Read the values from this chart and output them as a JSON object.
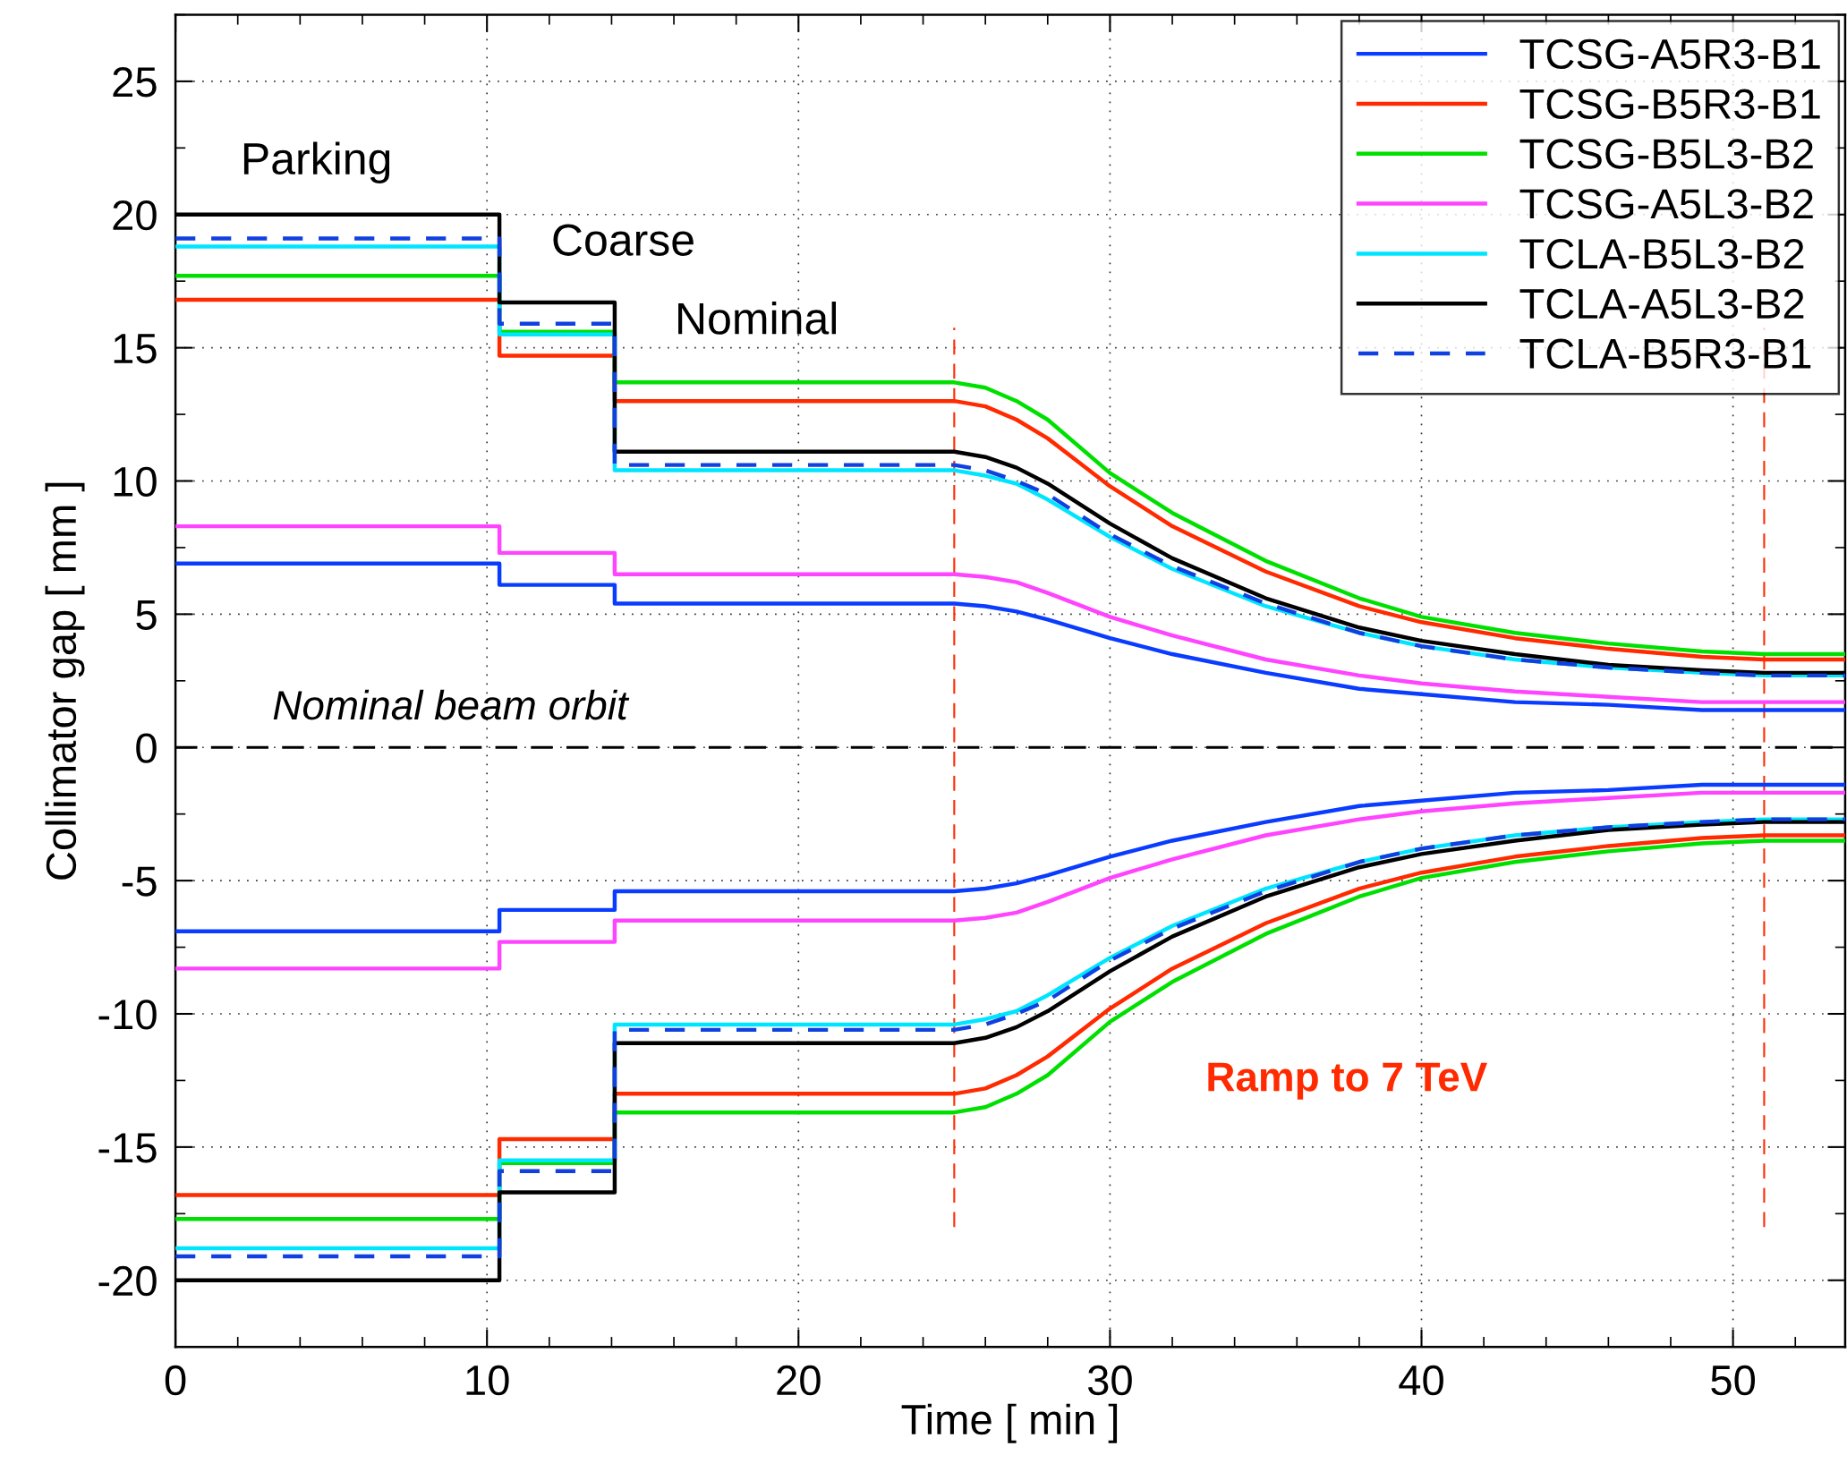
{
  "chart_data": {
    "type": "line",
    "xlabel": "Time [ min ]",
    "ylabel": "Collimator gap [ mm ]",
    "xlim": [
      0,
      53.6
    ],
    "ylim": [
      -22.5,
      27.5
    ],
    "xticks": [
      0,
      10,
      20,
      30,
      40,
      50
    ],
    "yticks": [
      -20,
      -15,
      -10,
      -5,
      0,
      5,
      10,
      15,
      20,
      25
    ],
    "grid": true,
    "legend": "top right",
    "line_style": "solid",
    "marker": "none",
    "ref_lines": [
      {
        "axis": "x",
        "value": 25,
        "label": null,
        "color": "#ff2a00",
        "line_style": "dashed"
      },
      {
        "axis": "x",
        "value": 51,
        "label": null,
        "color": "#ff2a00",
        "line_style": "dashed"
      },
      {
        "axis": "y",
        "value": 0,
        "label": null,
        "color": "#000000",
        "line_style": "dashed"
      }
    ],
    "annotations": [
      "Parking",
      "Coarse",
      "Nominal",
      "Nominal beam orbit",
      "Ramp to 7 TeV"
    ],
    "series": [
      {
        "name": "TCSG-A5R3-B1",
        "color": "#0a3cff",
        "x": [
          0,
          10.4,
          10.4,
          14.1,
          14.1,
          25,
          26,
          27,
          28,
          30,
          32,
          35,
          38,
          40,
          43,
          46,
          49,
          51,
          53.6,
          0,
          10.4,
          10.4,
          14.1,
          14.1,
          25,
          26,
          27,
          28,
          30,
          32,
          35,
          38,
          40,
          43,
          46,
          49,
          51,
          53.6
        ],
        "values": [
          6.9,
          6.9,
          6.1,
          6.1,
          5.4,
          5.4,
          5.3,
          5.1,
          4.8,
          4.1,
          3.5,
          2.8,
          2.2,
          2.0,
          1.7,
          1.6,
          1.4,
          1.4,
          1.4,
          -6.9,
          -6.9,
          -6.1,
          -6.1,
          -5.4,
          -5.4,
          -5.3,
          -5.1,
          -4.8,
          -4.1,
          -3.5,
          -2.8,
          -2.2,
          -2.0,
          -1.7,
          -1.6,
          -1.4,
          -1.4,
          -1.4
        ]
      },
      {
        "name": "TCSG-B5R3-B1",
        "color": "#ff2a00",
        "x": [
          0,
          10.4,
          10.4,
          14.1,
          14.1,
          25,
          26,
          27,
          28,
          30,
          32,
          35,
          38,
          40,
          43,
          46,
          49,
          51,
          53.6,
          0,
          10.4,
          10.4,
          14.1,
          14.1,
          25,
          26,
          27,
          28,
          30,
          32,
          35,
          38,
          40,
          43,
          46,
          49,
          51,
          53.6
        ],
        "values": [
          16.8,
          16.8,
          14.7,
          14.7,
          13.0,
          13.0,
          12.8,
          12.3,
          11.6,
          9.8,
          8.3,
          6.6,
          5.3,
          4.7,
          4.1,
          3.7,
          3.4,
          3.3,
          3.3,
          -16.8,
          -16.8,
          -14.7,
          -14.7,
          -13.0,
          -13.0,
          -12.8,
          -12.3,
          -11.6,
          -9.8,
          -8.3,
          -6.6,
          -5.3,
          -4.7,
          -4.1,
          -3.7,
          -3.4,
          -3.3,
          -3.3
        ]
      },
      {
        "name": "TCSG-B5L3-B2",
        "color": "#00e000",
        "x": [
          0,
          10.4,
          10.4,
          14.1,
          14.1,
          25,
          26,
          27,
          28,
          30,
          32,
          35,
          38,
          40,
          43,
          46,
          49,
          51,
          53.6,
          0,
          10.4,
          10.4,
          14.1,
          14.1,
          25,
          26,
          27,
          28,
          30,
          32,
          35,
          38,
          40,
          43,
          46,
          49,
          51,
          53.6
        ],
        "values": [
          17.7,
          17.7,
          15.6,
          15.6,
          13.7,
          13.7,
          13.5,
          13.0,
          12.3,
          10.3,
          8.8,
          7.0,
          5.6,
          4.9,
          4.3,
          3.9,
          3.6,
          3.5,
          3.5,
          -17.7,
          -17.7,
          -15.6,
          -15.6,
          -13.7,
          -13.7,
          -13.5,
          -13.0,
          -12.3,
          -10.3,
          -8.8,
          -7.0,
          -5.6,
          -4.9,
          -4.3,
          -3.9,
          -3.6,
          -3.5,
          -3.5
        ]
      },
      {
        "name": "TCSG-A5L3-B2",
        "color": "#ff44ff",
        "x": [
          0,
          10.4,
          10.4,
          14.1,
          14.1,
          25,
          26,
          27,
          28,
          30,
          32,
          35,
          38,
          40,
          43,
          46,
          49,
          51,
          53.6,
          0,
          10.4,
          10.4,
          14.1,
          14.1,
          25,
          26,
          27,
          28,
          30,
          32,
          35,
          38,
          40,
          43,
          46,
          49,
          51,
          53.6
        ],
        "values": [
          8.3,
          8.3,
          7.3,
          7.3,
          6.5,
          6.5,
          6.4,
          6.2,
          5.8,
          4.9,
          4.2,
          3.3,
          2.7,
          2.4,
          2.1,
          1.9,
          1.7,
          1.7,
          1.7,
          -8.3,
          -8.3,
          -7.3,
          -7.3,
          -6.5,
          -6.5,
          -6.4,
          -6.2,
          -5.8,
          -4.9,
          -4.2,
          -3.3,
          -2.7,
          -2.4,
          -2.1,
          -1.9,
          -1.7,
          -1.7,
          -1.7
        ]
      },
      {
        "name": "TCLA-B5L3-B2",
        "color": "#00e5ff",
        "x": [
          0,
          10.4,
          10.4,
          14.1,
          14.1,
          25,
          26,
          27,
          28,
          30,
          32,
          35,
          38,
          40,
          43,
          46,
          49,
          51,
          53.6,
          0,
          10.4,
          10.4,
          14.1,
          14.1,
          25,
          26,
          27,
          28,
          30,
          32,
          35,
          38,
          40,
          43,
          46,
          49,
          51,
          53.6
        ],
        "values": [
          18.8,
          18.8,
          15.5,
          15.5,
          10.4,
          10.4,
          10.2,
          9.9,
          9.3,
          7.9,
          6.7,
          5.3,
          4.3,
          3.8,
          3.3,
          3.0,
          2.8,
          2.7,
          2.7,
          -18.8,
          -18.8,
          -15.5,
          -15.5,
          -10.4,
          -10.4,
          -10.2,
          -9.9,
          -9.3,
          -7.9,
          -6.7,
          -5.3,
          -4.3,
          -3.8,
          -3.3,
          -3.0,
          -2.8,
          -2.7,
          -2.7
        ]
      },
      {
        "name": "TCLA-A5L3-B2",
        "color": "#000000",
        "x": [
          0,
          10.4,
          10.4,
          14.1,
          14.1,
          25,
          26,
          27,
          28,
          30,
          32,
          35,
          38,
          40,
          43,
          46,
          49,
          51,
          53.6,
          0,
          10.4,
          10.4,
          14.1,
          14.1,
          25,
          26,
          27,
          28,
          30,
          32,
          35,
          38,
          40,
          43,
          46,
          49,
          51,
          53.6
        ],
        "values": [
          20.0,
          20.0,
          16.7,
          16.7,
          11.1,
          11.1,
          10.9,
          10.5,
          9.9,
          8.4,
          7.1,
          5.6,
          4.5,
          4.0,
          3.5,
          3.1,
          2.9,
          2.8,
          2.8,
          -20.0,
          -20.0,
          -16.7,
          -16.7,
          -11.1,
          -11.1,
          -10.9,
          -10.5,
          -9.9,
          -8.4,
          -7.1,
          -5.6,
          -4.5,
          -4.0,
          -3.5,
          -3.1,
          -2.9,
          -2.8,
          -2.8
        ]
      },
      {
        "name": "TCLA-B5R3-B1",
        "color": "#1040e0",
        "line_style": "dashed",
        "x": [
          0,
          10.4,
          10.4,
          14.1,
          14.1,
          25,
          26,
          27,
          28,
          30,
          32,
          35,
          38,
          40,
          43,
          46,
          49,
          51,
          53.6,
          0,
          10.4,
          10.4,
          14.1,
          14.1,
          25,
          26,
          27,
          28,
          30,
          32,
          35,
          38,
          40,
          43,
          46,
          49,
          51,
          53.6
        ],
        "values": [
          19.1,
          19.1,
          15.9,
          15.9,
          10.6,
          10.6,
          10.4,
          10.0,
          9.5,
          8.0,
          6.8,
          5.4,
          4.3,
          3.8,
          3.3,
          3.0,
          2.8,
          2.7,
          2.7,
          -19.1,
          -19.1,
          -15.9,
          -15.9,
          -10.6,
          -10.6,
          -10.4,
          -10.0,
          -9.5,
          -8.0,
          -6.8,
          -5.4,
          -4.3,
          -3.8,
          -3.3,
          -3.0,
          -2.8,
          -2.7,
          -2.7
        ]
      }
    ]
  }
}
